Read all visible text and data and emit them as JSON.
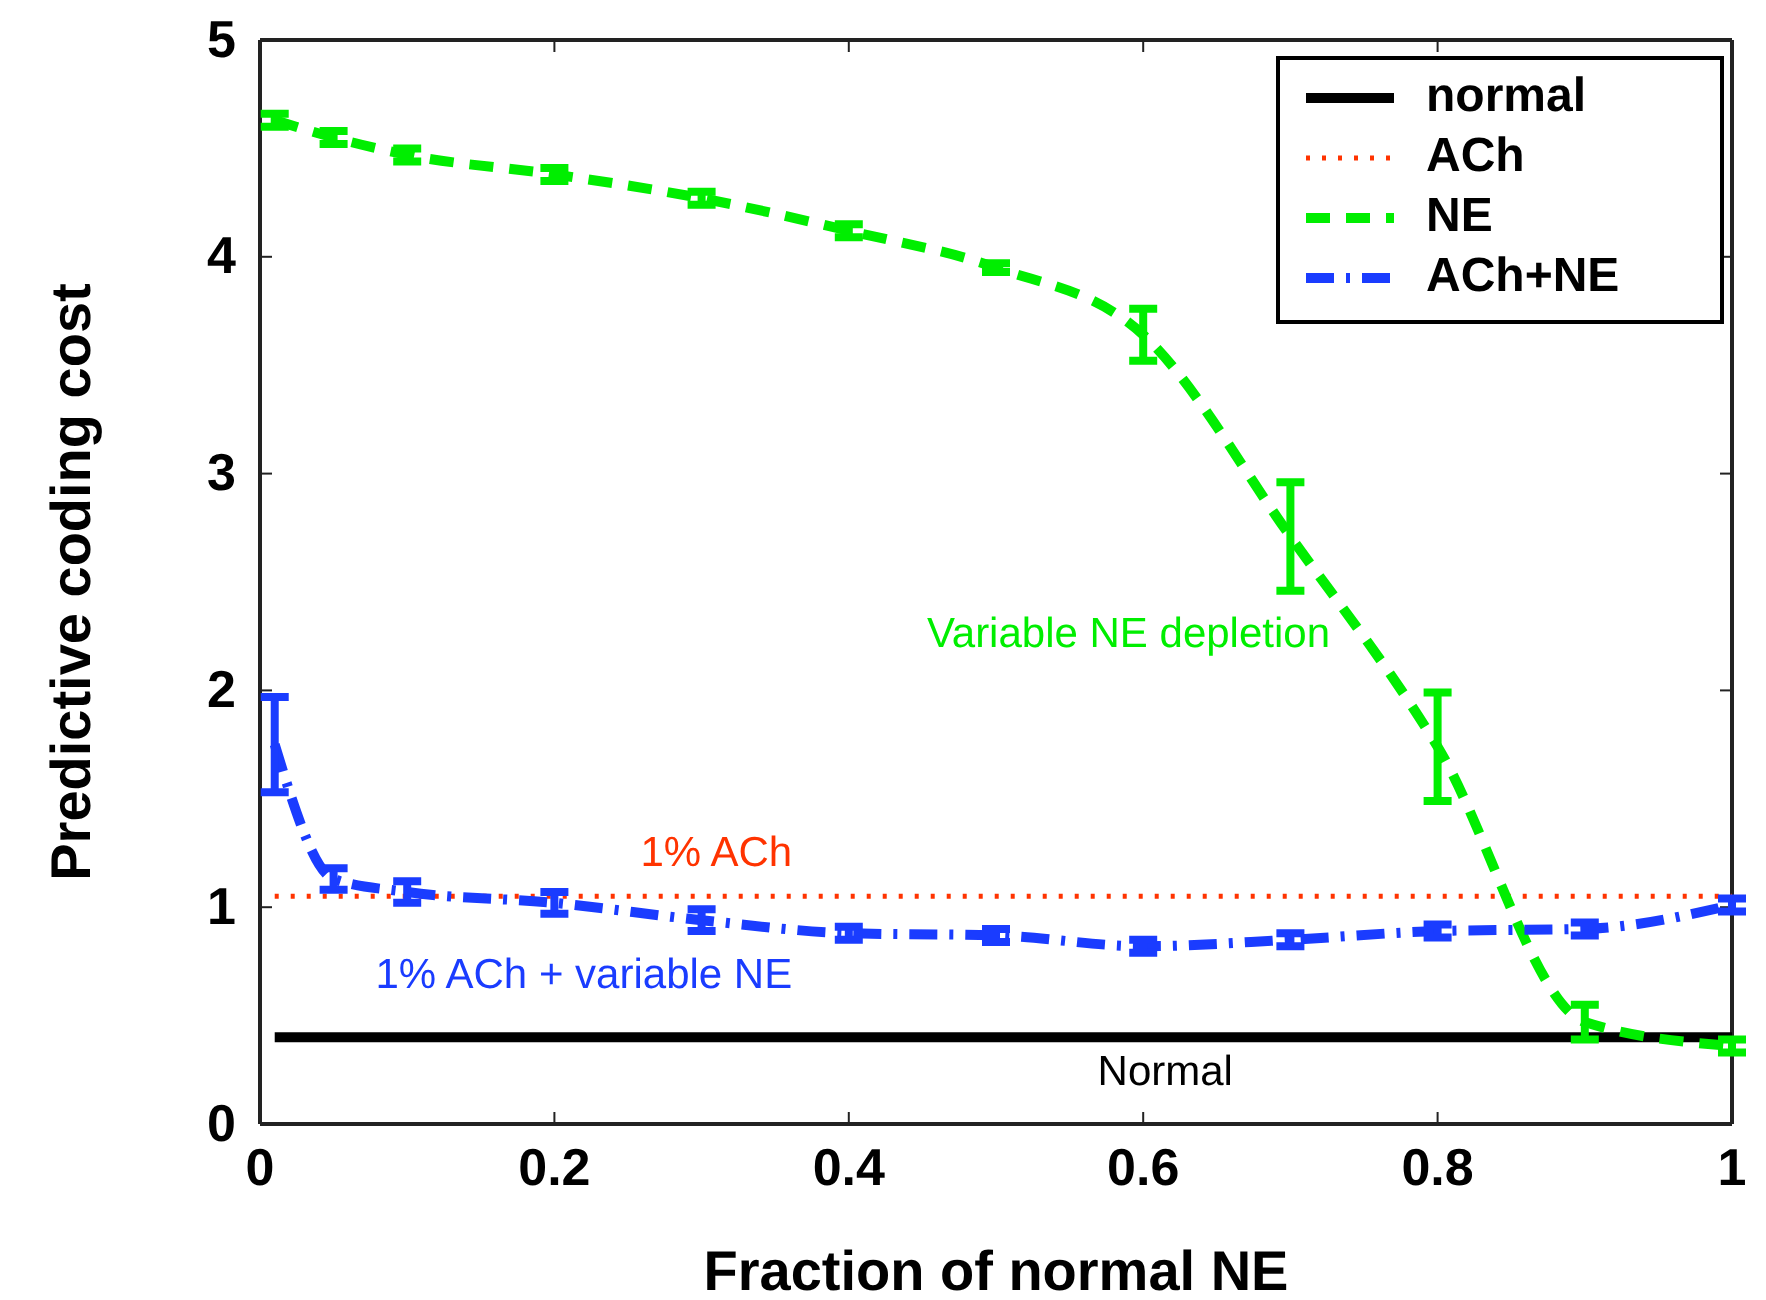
{
  "chart_data": {
    "type": "line",
    "xlabel": "Fraction of normal NE",
    "ylabel": "Predictive coding cost",
    "xlim": [
      0,
      1
    ],
    "ylim": [
      0,
      5
    ],
    "xticks": [
      0,
      0.2,
      0.4,
      0.6,
      0.8,
      1
    ],
    "yticks": [
      0,
      1,
      2,
      3,
      4,
      5
    ],
    "grid": false,
    "legend": "top right",
    "marker": "none",
    "series": [
      {
        "name": "normal",
        "color": "#000000",
        "line_style": "solid",
        "x": [
          0.01,
          1
        ],
        "values": [
          0.4,
          0.4
        ]
      },
      {
        "name": "ACh",
        "color": "#ff3300",
        "line_style": "dotted",
        "x": [
          0.01,
          1
        ],
        "values": [
          1.05,
          1.05
        ]
      },
      {
        "name": "NE",
        "color": "#00ee00",
        "line_style": "dashed",
        "x": [
          0.01,
          0.05,
          0.1,
          0.2,
          0.3,
          0.4,
          0.5,
          0.6,
          0.7,
          0.8,
          0.9,
          1
        ],
        "values": [
          4.63,
          4.55,
          4.47,
          4.38,
          4.27,
          4.12,
          3.95,
          3.64,
          2.71,
          1.74,
          0.47,
          0.36
        ],
        "errors": [
          0.03,
          0.03,
          0.03,
          0.03,
          0.03,
          0.03,
          0.02,
          0.12,
          0.25,
          0.25,
          0.08,
          0.03
        ]
      },
      {
        "name": "ACh+NE",
        "color": "#1a3cff",
        "line_style": "dashdot",
        "x": [
          0.01,
          0.05,
          0.1,
          0.2,
          0.3,
          0.4,
          0.5,
          0.6,
          0.7,
          0.8,
          0.9,
          1
        ],
        "values": [
          1.75,
          1.13,
          1.07,
          1.02,
          0.94,
          0.88,
          0.87,
          0.82,
          0.85,
          0.89,
          0.9,
          1.01
        ],
        "errors": [
          0.22,
          0.05,
          0.05,
          0.05,
          0.05,
          0.03,
          0.03,
          0.03,
          0.03,
          0.03,
          0.03,
          0.03
        ]
      }
    ],
    "annotations": [
      "Variable NE depletion",
      "1% ACh",
      "1% ACh + variable NE",
      "Normal"
    ]
  }
}
